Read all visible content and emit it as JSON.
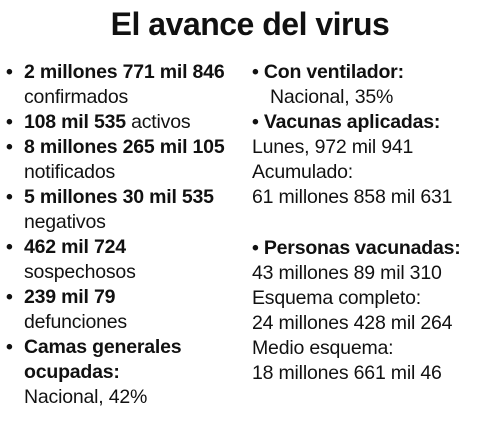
{
  "title": "El avance del virus",
  "left": [
    {
      "bold": "2 millones 771 mil 846",
      "label": "confirmados"
    },
    {
      "bold": "108 mil 535",
      "label": "activos"
    },
    {
      "bold": "8 millones 265 mil 105",
      "label": "notificados"
    },
    {
      "bold": "5 millones 30 mil 535",
      "label": "negativos"
    },
    {
      "bold": "462 mil 724",
      "label": "sospechosos"
    },
    {
      "bold": "239 mil 79",
      "label": "defunciones"
    }
  ],
  "camas": {
    "head": "Camas generales ocupadas:",
    "value": "Nacional, 42%"
  },
  "ventilador": {
    "head": "Con ventilador:",
    "value": "Nacional, 35%"
  },
  "vacunas": {
    "head": "Vacunas aplicadas:",
    "lunes": "Lunes, 972 mil 941",
    "acum_label": "Acumulado:",
    "acum_value": "61 millones 858 mil 631"
  },
  "personas": {
    "head": "Personas vacunadas:",
    "total": "43 millones 89 mil 310",
    "completo_label": "Esquema completo:",
    "completo_value": "24 millones 428 mil 264",
    "medio_label": "Medio esquema:",
    "medio_value": "18 millones 661 mil 46"
  },
  "bullet": "•"
}
